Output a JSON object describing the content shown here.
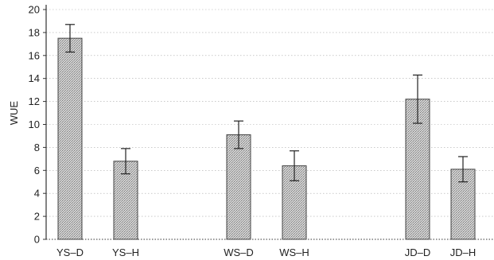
{
  "chart_data": {
    "type": "bar",
    "title": "",
    "xlabel": "",
    "ylabel": "WUE",
    "ylim": [
      0,
      20
    ],
    "yticks": [
      0,
      2,
      4,
      6,
      8,
      10,
      12,
      14,
      16,
      18,
      20
    ],
    "grid": "horizontal dotted",
    "categories": [
      "YS–D",
      "YS–H",
      "WS–D",
      "WS–H",
      "JD–D",
      "JD–H"
    ],
    "values": [
      17.5,
      6.8,
      9.1,
      6.4,
      12.2,
      6.1
    ],
    "errors": [
      1.2,
      1.1,
      1.2,
      1.3,
      2.1,
      1.1
    ],
    "colors": {
      "bar_fill": "#c8c8c8",
      "bar_stroke": "#444444",
      "grid": "#aaaaaa",
      "axis": "#333333"
    }
  }
}
